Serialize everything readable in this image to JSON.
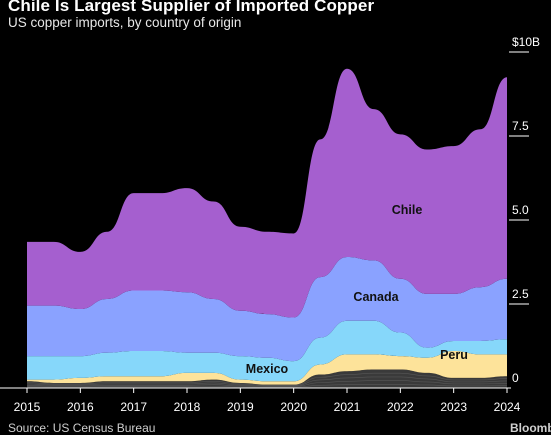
{
  "header": {
    "title": "Chile Is Largest Supplier of Imported Copper",
    "subtitle": "US copper imports, by country of origin"
  },
  "footer": {
    "source": "Source: US Census Bureau",
    "brand": "Bloomberg"
  },
  "colors": {
    "background": "#000000",
    "Chile": "#a55fcf",
    "Canada": "#8aa2ff",
    "Mexico": "#86d7fa",
    "Peru": "#fde39a",
    "Other": "#3a3a3a"
  },
  "chart_data": {
    "type": "area",
    "stacked": true,
    "x": [
      2015,
      2015.5,
      2016,
      2016.5,
      2017,
      2017.5,
      2018,
      2018.5,
      2019,
      2019.5,
      2020,
      2020.5,
      2021,
      2021.5,
      2022,
      2022.5,
      2023,
      2023.5,
      2024
    ],
    "series": [
      {
        "name": "",
        "values": [
          0.2,
          0.15,
          0.15,
          0.2,
          0.2,
          0.2,
          0.2,
          0.25,
          0.15,
          0.1,
          0.1,
          0.4,
          0.5,
          0.55,
          0.55,
          0.45,
          0.3,
          0.3,
          0.35
        ]
      },
      {
        "name": "Peru",
        "values": [
          0.05,
          0.1,
          0.15,
          0.15,
          0.15,
          0.15,
          0.25,
          0.2,
          0.1,
          0.1,
          0.1,
          0.3,
          0.5,
          0.45,
          0.4,
          0.45,
          0.8,
          0.7,
          0.65
        ]
      },
      {
        "name": "Mexico",
        "values": [
          0.7,
          0.7,
          0.65,
          0.7,
          0.75,
          0.75,
          0.6,
          0.6,
          0.7,
          0.7,
          0.6,
          0.8,
          1.0,
          1.0,
          0.7,
          0.3,
          0.3,
          0.4,
          0.45
        ]
      },
      {
        "name": "Canada",
        "values": [
          1.5,
          1.5,
          1.4,
          1.6,
          1.8,
          1.8,
          1.8,
          1.6,
          1.35,
          1.3,
          1.3,
          1.8,
          1.9,
          1.8,
          1.6,
          1.6,
          1.4,
          1.6,
          1.8
        ]
      },
      {
        "name": "Chile",
        "values": [
          1.9,
          1.9,
          1.7,
          2.0,
          2.9,
          2.9,
          3.1,
          2.9,
          2.5,
          2.45,
          2.5,
          4.1,
          5.6,
          4.5,
          4.3,
          4.3,
          4.4,
          4.7,
          6.0
        ]
      }
    ],
    "labels": {
      "Chile": "Chile",
      "Canada": "Canada",
      "Mexico": "Mexico",
      "Peru": "Peru"
    },
    "x_ticks": [
      "2015",
      "2016",
      "2017",
      "2018",
      "2019",
      "2020",
      "2021",
      "2022",
      "2023",
      "2024"
    ],
    "y_ticks": [
      {
        "value": 0,
        "label": "0"
      },
      {
        "value": 2.5,
        "label": "2.5"
      },
      {
        "value": 5.0,
        "label": "5.0"
      },
      {
        "value": 7.5,
        "label": "7.5"
      },
      {
        "value": 10,
        "label": "$10B"
      }
    ],
    "xlim": [
      2015,
      2024
    ],
    "ylim": [
      0,
      10
    ],
    "yaxis_position": "right",
    "grid": false
  }
}
